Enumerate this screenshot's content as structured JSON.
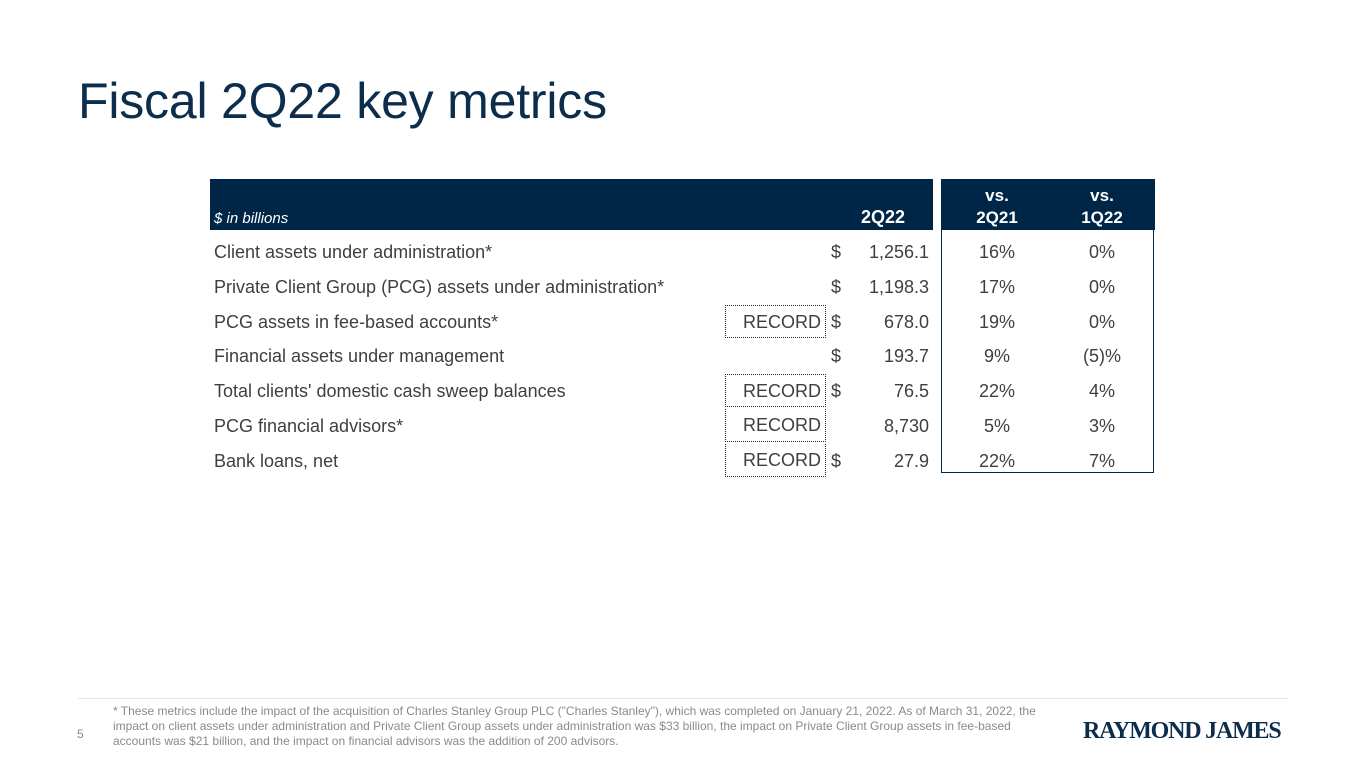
{
  "title": "Fiscal 2Q22 key metrics",
  "table": {
    "units_label": "$ in billions",
    "col_current": "2Q22",
    "col_vs1": [
      "vs.",
      "2Q21"
    ],
    "col_vs2": [
      "vs.",
      "1Q22"
    ],
    "rows": [
      {
        "label": "Client assets under administration*",
        "record": "",
        "dollar": "$",
        "value": "1,256.1",
        "vs_2q21": "16%",
        "vs_1q22": "0%"
      },
      {
        "label": "Private Client Group (PCG) assets under administration*",
        "record": "",
        "dollar": "$",
        "value": "1,198.3",
        "vs_2q21": "17%",
        "vs_1q22": "0%"
      },
      {
        "label": "PCG assets in fee-based accounts*",
        "record": "RECORD",
        "dollar": "$",
        "value": "678.0",
        "vs_2q21": "19%",
        "vs_1q22": "0%"
      },
      {
        "label": "Financial assets under management",
        "record": "",
        "dollar": "$",
        "value": "193.7",
        "vs_2q21": "9%",
        "vs_1q22": "(5)%"
      },
      {
        "label": "Total clients' domestic cash sweep balances",
        "record": "RECORD",
        "dollar": "$",
        "value": "76.5",
        "vs_2q21": "22%",
        "vs_1q22": "4%"
      },
      {
        "label": "PCG financial advisors*",
        "record": "RECORD",
        "dollar": "",
        "value": "8,730",
        "vs_2q21": "5%",
        "vs_1q22": "3%"
      },
      {
        "label": "Bank loans, net",
        "record": "RECORD",
        "dollar": "$",
        "value": "27.9",
        "vs_2q21": "22%",
        "vs_1q22": "7%"
      }
    ]
  },
  "footer": {
    "page_number": "5",
    "footnote": "* These metrics include the impact of the acquisition of Charles Stanley Group PLC (\"Charles Stanley\"), which was completed on January 21, 2022. As of March 31, 2022, the impact on client assets under administration and Private Client Group assets under administration was $33 billion, the impact on Private Client Group assets in fee-based accounts was $21 billion, and the impact on financial advisors was the addition of 200 advisors.",
    "logo_text": "RAYMOND JAMES"
  },
  "colors": {
    "navy": "#002647",
    "title": "#0d2d4c",
    "text": "#3f3f3f",
    "footnote": "#8a8a8a"
  }
}
